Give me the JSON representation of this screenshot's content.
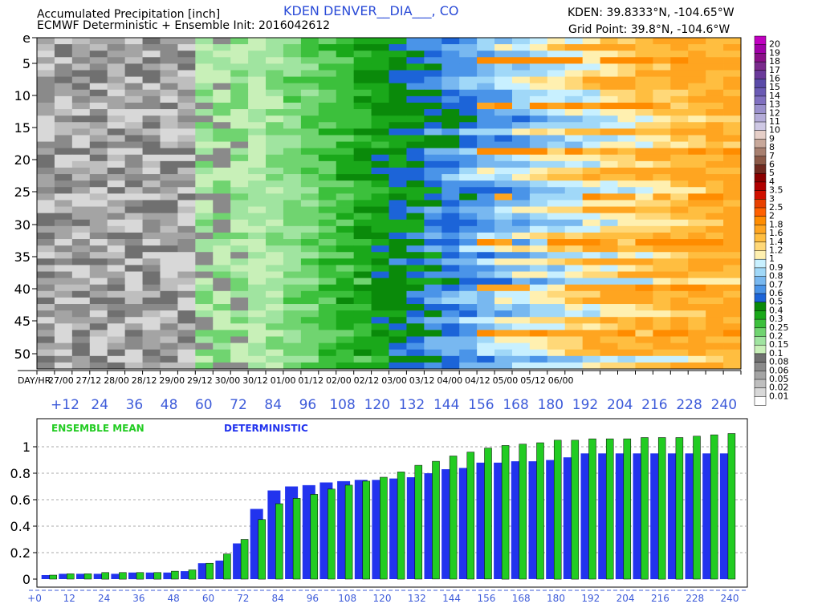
{
  "header": {
    "title": "Accumulated Precipitation [inch]",
    "subtitle": "ECMWF Deterministic + Ensemble Init: 2016042612",
    "station": "KDEN DENVER__DIA___, CO",
    "station_coords": "KDEN: 39.8333°N, -104.65°W",
    "grid_point": "Grid Point: 39.8°N, -104.6°W"
  },
  "colors": {
    "station": "#2a4bd7",
    "axis_blue": "#3d5bd9",
    "ensemble": "#22cc22",
    "deterministic": "#2233ee",
    "grid": "#aaaaaa"
  },
  "plume": {
    "member_labels": [
      "e",
      "5",
      "10",
      "15",
      "20",
      "25",
      "30",
      "35",
      "40",
      "45",
      "50"
    ],
    "day_hr_label": "DAY/HR",
    "time_labels": [
      "27/00",
      "27/12",
      "28/00",
      "28/12",
      "29/00",
      "29/12",
      "30/00",
      "30/12",
      "01/00",
      "01/12",
      "02/00",
      "02/12",
      "03/00",
      "03/12",
      "04/00",
      "04/12",
      "05/00",
      "05/12",
      "06/00"
    ],
    "hour_labels": [
      "+12",
      "24",
      "36",
      "48",
      "60",
      "72",
      "84",
      "96",
      "108",
      "120",
      "132",
      "144",
      "156",
      "168",
      "180",
      "192",
      "204",
      "216",
      "228",
      "240"
    ]
  },
  "legend": {
    "labels": [
      "20",
      "19",
      "18",
      "17",
      "16",
      "15",
      "14",
      "13",
      "12",
      "11",
      "10",
      "9",
      "8",
      "7",
      "6",
      "5",
      "4",
      "3.5",
      "3",
      "2.5",
      "2",
      "1.8",
      "1.6",
      "1.4",
      "1.2",
      "1",
      "0.9",
      "0.8",
      "0.7",
      "0.6",
      "0.5",
      "0.4",
      "0.3",
      "0.25",
      "0.2",
      "0.15",
      "0.1",
      "0.08",
      "0.06",
      "0.05",
      "0.02",
      "0.01"
    ],
    "colors": [
      "#c000c0",
      "#a000a8",
      "#8a1088",
      "#7a2a8c",
      "#6a3a9a",
      "#5a4aa8",
      "#6a5ab4",
      "#8070c0",
      "#9a90cc",
      "#b4acd8",
      "#cec8e4",
      "#e6cfc8",
      "#c8a89a",
      "#a88070",
      "#8c5a48",
      "#702a20",
      "#8b0000",
      "#b00000",
      "#d01000",
      "#e84000",
      "#ff6000",
      "#ff8c00",
      "#ffa520",
      "#ffbe40",
      "#ffd878",
      "#fff0b0",
      "#c8f0ff",
      "#a0d8f8",
      "#78b8f0",
      "#4a94e8",
      "#1c64d8",
      "#0a8a0a",
      "#1aa81a",
      "#3cc03c",
      "#70d470",
      "#a0e4a0",
      "#c8f0b8",
      "#707070",
      "#8a8a8a",
      "#a4a4a4",
      "#bebebe",
      "#d8d8d8",
      "#ffffff"
    ]
  },
  "chart_data": {
    "type": "bar",
    "series_labels": {
      "ensemble": "ENSEMBLE MEAN",
      "deterministic": "DETERMINISTIC"
    },
    "x_ticks": [
      "+0",
      "12",
      "24",
      "36",
      "48",
      "60",
      "72",
      "84",
      "96",
      "108",
      "120",
      "132",
      "144",
      "156",
      "168",
      "180",
      "192",
      "204",
      "216",
      "228",
      "240"
    ],
    "y_ticks": [
      "0",
      "0.2",
      "0.4",
      "0.6",
      "0.8",
      "1"
    ],
    "ylim": [
      0,
      1.2
    ],
    "xlim": [
      0,
      246
    ],
    "x": [
      6,
      12,
      18,
      24,
      30,
      36,
      42,
      48,
      54,
      60,
      66,
      72,
      78,
      84,
      90,
      96,
      102,
      108,
      114,
      120,
      126,
      132,
      138,
      144,
      150,
      156,
      162,
      168,
      174,
      180,
      186,
      192,
      198,
      204,
      210,
      216,
      222,
      228,
      234,
      240
    ],
    "series": [
      {
        "name": "DETERMINISTIC",
        "values": [
          0.03,
          0.04,
          0.04,
          0.04,
          0.04,
          0.05,
          0.05,
          0.05,
          0.06,
          0.12,
          0.14,
          0.27,
          0.53,
          0.67,
          0.7,
          0.71,
          0.73,
          0.74,
          0.75,
          0.75,
          0.76,
          0.77,
          0.8,
          0.83,
          0.84,
          0.88,
          0.88,
          0.89,
          0.89,
          0.9,
          0.92,
          0.95,
          0.95,
          0.95,
          0.95,
          0.95,
          0.95,
          0.95,
          0.95,
          0.95
        ]
      },
      {
        "name": "ENSEMBLE MEAN",
        "values": [
          0.03,
          0.04,
          0.04,
          0.05,
          0.05,
          0.05,
          0.05,
          0.06,
          0.07,
          0.12,
          0.19,
          0.3,
          0.45,
          0.57,
          0.61,
          0.64,
          0.68,
          0.71,
          0.74,
          0.77,
          0.81,
          0.86,
          0.89,
          0.93,
          0.96,
          0.99,
          1.01,
          1.02,
          1.03,
          1.05,
          1.05,
          1.06,
          1.06,
          1.06,
          1.07,
          1.07,
          1.07,
          1.08,
          1.09,
          1.1
        ]
      }
    ]
  }
}
